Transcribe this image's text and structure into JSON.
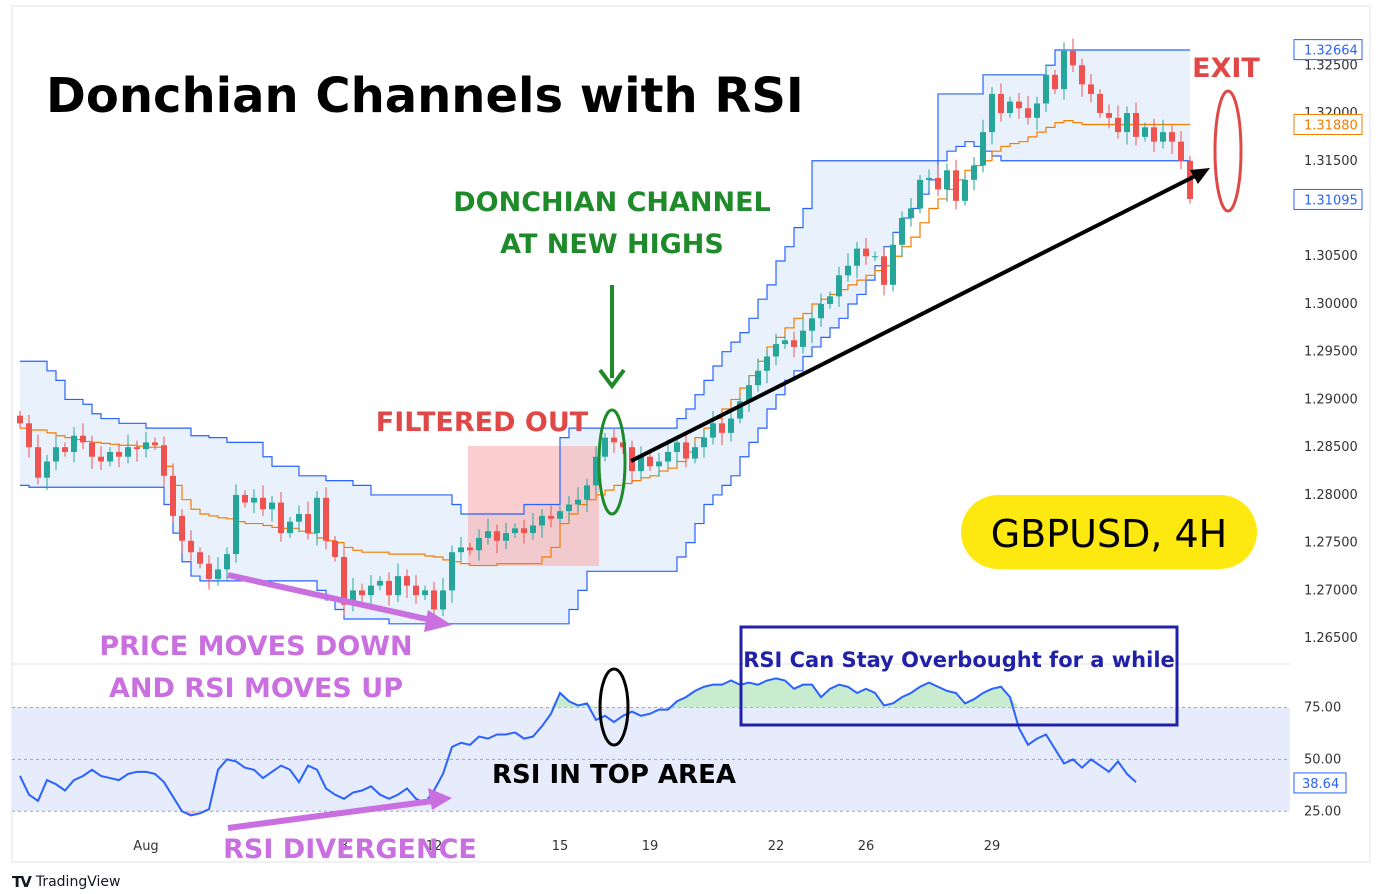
{
  "chart_data": [
    {
      "type": "candlestick",
      "title": "Donchian Channels with RSI",
      "symbol_label": "GBPUSD, 4H",
      "ylim": [
        1.2625,
        1.331
      ],
      "yticks": [
        "1.32500",
        "1.32000",
        "1.31500",
        "1.30500",
        "1.30000",
        "1.29500",
        "1.29000",
        "1.28500",
        "1.28000",
        "1.27500",
        "1.27000",
        "1.26500"
      ],
      "price_labels": [
        {
          "text": "1.32664",
          "value": 1.32664,
          "color": "#2962ff"
        },
        {
          "text": "1.31880",
          "value": 1.3188,
          "color": "#f57c00"
        },
        {
          "text": "1.31095",
          "value": 1.31095,
          "color": "#2962ff"
        }
      ],
      "xticks": [
        {
          "label": "Aug",
          "index": 14
        },
        {
          "label": "8",
          "index": 36
        },
        {
          "label": "12",
          "index": 46
        },
        {
          "label": "15",
          "index": 60
        },
        {
          "label": "19",
          "index": 70
        },
        {
          "label": "22",
          "index": 84
        },
        {
          "label": "26",
          "index": 94
        },
        {
          "label": "29",
          "index": 108
        }
      ],
      "series": [
        {
          "name": "candles",
          "kind": "ohlc",
          "closes": [
            1.2875,
            1.285,
            1.2818,
            1.2835,
            1.285,
            1.2845,
            1.2862,
            1.2855,
            1.284,
            1.2835,
            1.2845,
            1.284,
            1.285,
            1.2848,
            1.2855,
            1.2852,
            1.282,
            1.2778,
            1.2752,
            1.274,
            1.2728,
            1.2712,
            1.2722,
            1.2738,
            1.28,
            1.2792,
            1.2797,
            1.2785,
            1.2792,
            1.276,
            1.2772,
            1.278,
            1.276,
            1.2797,
            1.2752,
            1.2735,
            1.2685,
            1.27,
            1.2695,
            1.2705,
            1.271,
            1.2695,
            1.2715,
            1.2705,
            1.2695,
            1.27,
            1.268,
            1.27,
            1.274,
            1.2745,
            1.2742,
            1.2755,
            1.2762,
            1.2752,
            1.276,
            1.2765,
            1.276,
            1.2768,
            1.2778,
            1.2775,
            1.2783,
            1.279,
            1.2795,
            1.281,
            1.284,
            1.286,
            1.2855,
            1.285,
            1.2825,
            1.284,
            1.283,
            1.2835,
            1.2845,
            1.2855,
            1.2838,
            1.285,
            1.286,
            1.2875,
            1.2865,
            1.288,
            1.2898,
            1.2915,
            1.293,
            1.2945,
            1.2958,
            1.2962,
            1.2955,
            1.2972,
            1.2985,
            1.3,
            1.3008,
            1.303,
            1.304,
            1.3058,
            1.305,
            1.305,
            1.302,
            1.3062,
            1.309,
            1.31,
            1.313,
            1.3132,
            1.312,
            1.314,
            1.3108,
            1.313,
            1.3145,
            1.318,
            1.322,
            1.32,
            1.3212,
            1.3205,
            1.3195,
            1.321,
            1.324,
            1.3225,
            1.3265,
            1.325,
            1.323,
            1.322,
            1.32,
            1.3195,
            1.318,
            1.32,
            1.3175,
            1.3185,
            1.317,
            1.318,
            1.317,
            1.315,
            1.311
          ]
        },
        {
          "name": "donchian_upper",
          "kind": "line",
          "color": "#2962ff",
          "values": [
            1.294,
            1.294,
            1.294,
            1.293,
            1.292,
            1.29,
            1.29,
            1.2895,
            1.2885,
            1.288,
            1.288,
            1.2875,
            1.2875,
            1.2875,
            1.287,
            1.287,
            1.287,
            1.287,
            1.287,
            1.2862,
            1.2862,
            1.286,
            1.286,
            1.2855,
            1.2855,
            1.2855,
            1.2855,
            1.284,
            1.283,
            1.283,
            1.283,
            1.282,
            1.282,
            1.282,
            1.2815,
            1.2815,
            1.2815,
            1.281,
            1.281,
            1.28,
            1.28,
            1.28,
            1.28,
            1.28,
            1.28,
            1.28,
            1.28,
            1.28,
            1.279,
            1.278,
            1.278,
            1.278,
            1.278,
            1.278,
            1.278,
            1.278,
            1.279,
            1.279,
            1.279,
            1.279,
            1.286,
            1.287,
            1.287,
            1.287,
            1.287,
            1.287,
            1.287,
            1.287,
            1.287,
            1.287,
            1.287,
            1.287,
            1.287,
            1.288,
            1.289,
            1.2905,
            1.292,
            1.2935,
            1.295,
            1.296,
            1.297,
            1.2985,
            1.3005,
            1.302,
            1.3045,
            1.306,
            1.308,
            1.31,
            1.315,
            1.315,
            1.315,
            1.315,
            1.315,
            1.315,
            1.315,
            1.315,
            1.315,
            1.315,
            1.315,
            1.315,
            1.315,
            1.315,
            1.322,
            1.322,
            1.322,
            1.322,
            1.322,
            1.324,
            1.324,
            1.324,
            1.324,
            1.324,
            1.324,
            1.324,
            1.325,
            1.3266,
            1.3266,
            1.3266,
            1.3266,
            1.3266,
            1.3266,
            1.3266,
            1.3266,
            1.3266,
            1.3266,
            1.3266,
            1.3266,
            1.3266,
            1.3266,
            1.3266,
            1.3266
          ]
        },
        {
          "name": "donchian_middle",
          "kind": "line",
          "color": "#f57c00",
          "values": [
            1.287,
            1.2868,
            1.2868,
            1.2865,
            1.2862,
            1.286,
            1.2858,
            1.2856,
            1.2855,
            1.2854,
            1.2853,
            1.2852,
            1.2852,
            1.2851,
            1.285,
            1.285,
            1.283,
            1.281,
            1.2795,
            1.2785,
            1.278,
            1.2778,
            1.2776,
            1.2775,
            1.2772,
            1.277,
            1.277,
            1.2768,
            1.2766,
            1.2765,
            1.2765,
            1.2762,
            1.276,
            1.2755,
            1.2752,
            1.275,
            1.2745,
            1.2742,
            1.274,
            1.274,
            1.274,
            1.2738,
            1.2738,
            1.2738,
            1.2738,
            1.2736,
            1.2735,
            1.2732,
            1.273,
            1.2728,
            1.2726,
            1.2726,
            1.2726,
            1.2728,
            1.2728,
            1.2728,
            1.2728,
            1.2728,
            1.2735,
            1.2745,
            1.277,
            1.278,
            1.279,
            1.2795,
            1.28,
            1.2805,
            1.281,
            1.2812,
            1.2815,
            1.2818,
            1.282,
            1.2825,
            1.2828,
            1.2835,
            1.2845,
            1.286,
            1.287,
            1.288,
            1.289,
            1.29,
            1.2912,
            1.2925,
            1.294,
            1.2955,
            1.2965,
            1.2975,
            1.2985,
            1.299,
            1.3,
            1.3005,
            1.301,
            1.3015,
            1.302,
            1.3025,
            1.303,
            1.3035,
            1.304,
            1.305,
            1.306,
            1.307,
            1.3085,
            1.31,
            1.311,
            1.312,
            1.313,
            1.314,
            1.3145,
            1.315,
            1.316,
            1.3165,
            1.3168,
            1.317,
            1.3175,
            1.318,
            1.3185,
            1.319,
            1.3192,
            1.319,
            1.3188,
            1.3188,
            1.3188,
            1.3188,
            1.3188,
            1.3188,
            1.3188,
            1.3188,
            1.3188,
            1.3188,
            1.3188,
            1.3188,
            1.3188
          ]
        },
        {
          "name": "donchian_lower",
          "kind": "line",
          "color": "#2962ff",
          "values": [
            1.281,
            1.2808,
            1.2808,
            1.2808,
            1.2808,
            1.2808,
            1.2808,
            1.2808,
            1.2808,
            1.2808,
            1.2808,
            1.2808,
            1.2808,
            1.2808,
            1.2808,
            1.2808,
            1.279,
            1.276,
            1.273,
            1.2715,
            1.271,
            1.271,
            1.271,
            1.271,
            1.271,
            1.271,
            1.271,
            1.271,
            1.271,
            1.271,
            1.271,
            1.271,
            1.271,
            1.27,
            1.269,
            1.268,
            1.267,
            1.267,
            1.267,
            1.267,
            1.267,
            1.2665,
            1.2665,
            1.2665,
            1.2665,
            1.2665,
            1.2665,
            1.2665,
            1.2665,
            1.2665,
            1.2665,
            1.2665,
            1.2665,
            1.2665,
            1.2665,
            1.2665,
            1.2665,
            1.2665,
            1.2665,
            1.2665,
            1.2665,
            1.268,
            1.27,
            1.272,
            1.272,
            1.272,
            1.272,
            1.272,
            1.272,
            1.272,
            1.272,
            1.272,
            1.272,
            1.2735,
            1.275,
            1.277,
            1.279,
            1.28,
            1.281,
            1.282,
            1.284,
            1.2855,
            1.287,
            1.289,
            1.2905,
            1.292,
            1.293,
            1.2945,
            1.2955,
            1.2965,
            1.2975,
            1.2985,
            1.3,
            1.301,
            1.3025,
            1.304,
            1.306,
            1.3075,
            1.309,
            1.31,
            1.3115,
            1.313,
            1.315,
            1.316,
            1.3165,
            1.317,
            1.3165,
            1.316,
            1.3155,
            1.315,
            1.315,
            1.315,
            1.315,
            1.315,
            1.315,
            1.315,
            1.315,
            1.315,
            1.315,
            1.315,
            1.315,
            1.315,
            1.315,
            1.315,
            1.315,
            1.315,
            1.315,
            1.315,
            1.315,
            1.315,
            1.311
          ]
        }
      ],
      "annotations": {
        "headline_top": "DONCHIAN CHANNEL",
        "headline_bottom": "AT NEW HIGHS",
        "filtered": "FILTERED OUT",
        "exit": "EXIT",
        "price_note_top": "PRICE MOVES DOWN",
        "price_note_bottom": "AND RSI MOVES UP",
        "divergence": "RSI DIVERGENCE",
        "top_area": "RSI IN TOP AREA",
        "overbought": "RSI Can Stay Overbought for a while"
      }
    },
    {
      "type": "line",
      "name": "RSI",
      "ylim": [
        15,
        95
      ],
      "yticks": [
        "75.00",
        "50.00",
        "25.00"
      ],
      "bands": [
        25,
        50,
        75
      ],
      "last_label": {
        "text": "38.64",
        "value": 38.64
      },
      "color": "#2962ff",
      "values": [
        42,
        33,
        30,
        40,
        38,
        35,
        40,
        42,
        45,
        42,
        41,
        40,
        43,
        44,
        44,
        43,
        39,
        32,
        25,
        23,
        24,
        26,
        45,
        50,
        49,
        46,
        45,
        41,
        44,
        47,
        45,
        39,
        47,
        45,
        36,
        33,
        31,
        34,
        35,
        37,
        33,
        31,
        33,
        36,
        31,
        29,
        35,
        43,
        56,
        58,
        57,
        61,
        60,
        62,
        62,
        63,
        60,
        61,
        66,
        72,
        82,
        78,
        76,
        77,
        69,
        71,
        68,
        71,
        73,
        71,
        72,
        74,
        74,
        78,
        80,
        83,
        85,
        86,
        86,
        88,
        86,
        87,
        86,
        88,
        89,
        88,
        84,
        86,
        86,
        80,
        84,
        86,
        85,
        82,
        84,
        82,
        76,
        77,
        80,
        82,
        85,
        87,
        85,
        83,
        82,
        77,
        79,
        82,
        84,
        85,
        80,
        65,
        57,
        60,
        62,
        55,
        48,
        50,
        46,
        50,
        47,
        44,
        49,
        43,
        39
      ]
    }
  ]
}
